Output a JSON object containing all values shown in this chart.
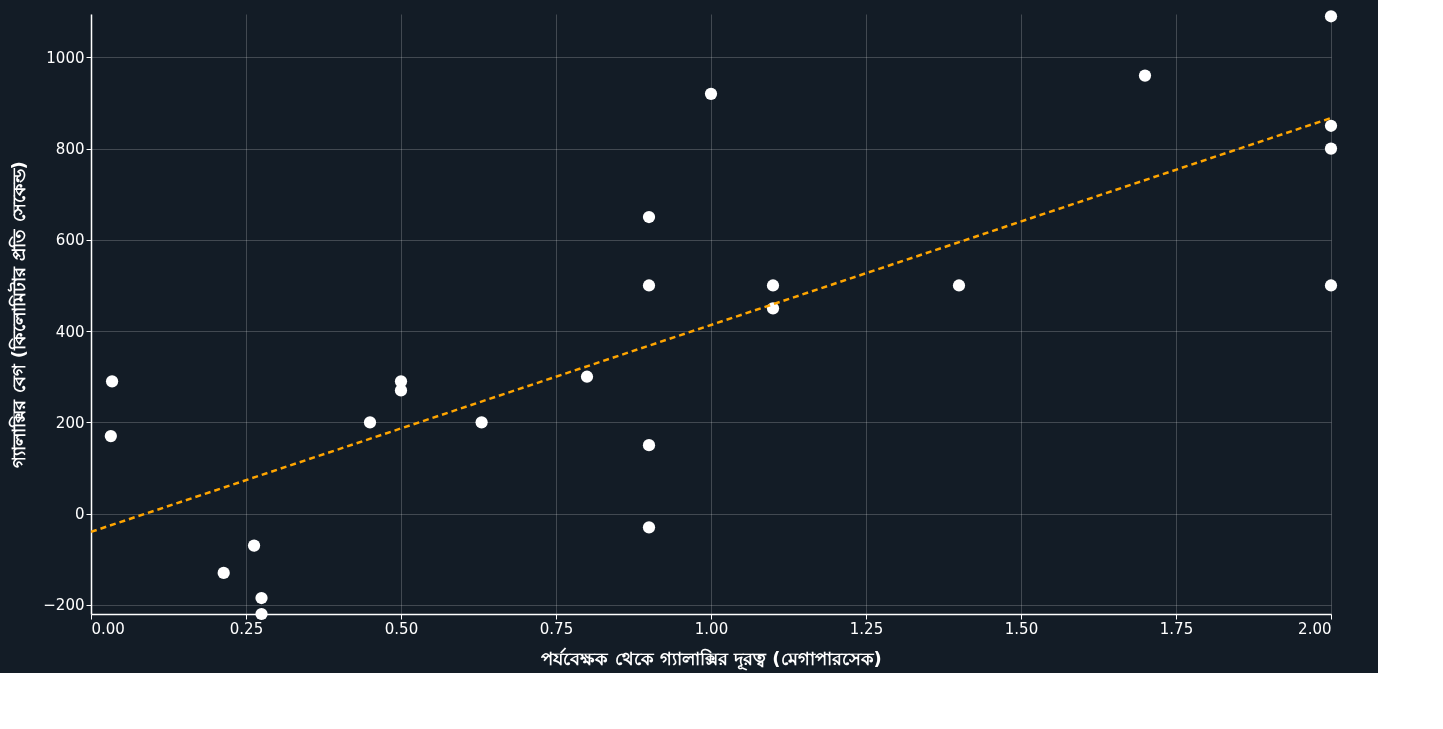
{
  "chart_data": {
    "type": "scatter",
    "xlabel": "পর্যবেক্ষক থেকে গ্যালাক্সির দূরত্ব (মেগাপারসেক)",
    "ylabel": "গ্যালাক্সির বেগ (কিলোমিটার প্রতি সেকেন্ড)",
    "xlim": [
      0,
      2
    ],
    "ylim": [
      -220,
      1095
    ],
    "xticks": [
      {
        "value": 0,
        "label": "0.00"
      },
      {
        "value": 0.25,
        "label": "0.25"
      },
      {
        "value": 0.5,
        "label": "0.50"
      },
      {
        "value": 0.75,
        "label": "0.75"
      },
      {
        "value": 1,
        "label": "1.00"
      },
      {
        "value": 1.25,
        "label": "1.25"
      },
      {
        "value": 1.5,
        "label": "1.50"
      },
      {
        "value": 1.75,
        "label": "1.75"
      },
      {
        "value": 2,
        "label": "2.00"
      }
    ],
    "yticks": [
      {
        "value": -200,
        "label": "−200"
      },
      0,
      200,
      400,
      600,
      800,
      1000
    ],
    "grid": true,
    "series": [
      {
        "color": "#ffffff",
        "marker": "circle",
        "x": [
          0.032,
          0.034,
          0.214,
          0.263,
          0.275,
          0.275,
          0.45,
          0.5,
          0.5,
          0.63,
          0.8,
          0.9,
          0.9,
          0.9,
          0.9,
          1.0,
          1.1,
          1.1,
          1.4,
          1.7,
          2.0,
          2.0,
          2.0,
          2.0
        ],
        "values": [
          170,
          290,
          -130,
          -70,
          -185,
          -220,
          200,
          290,
          270,
          200,
          300,
          -30,
          650,
          150,
          500,
          920,
          450,
          500,
          500,
          960,
          500,
          850,
          800,
          1090
        ]
      },
      {
        "type": "line",
        "color": "#ffa500",
        "marker": "none",
        "line_style": "dashed",
        "x": [
          0,
          2
        ],
        "values": [
          -40,
          867
        ]
      }
    ]
  }
}
